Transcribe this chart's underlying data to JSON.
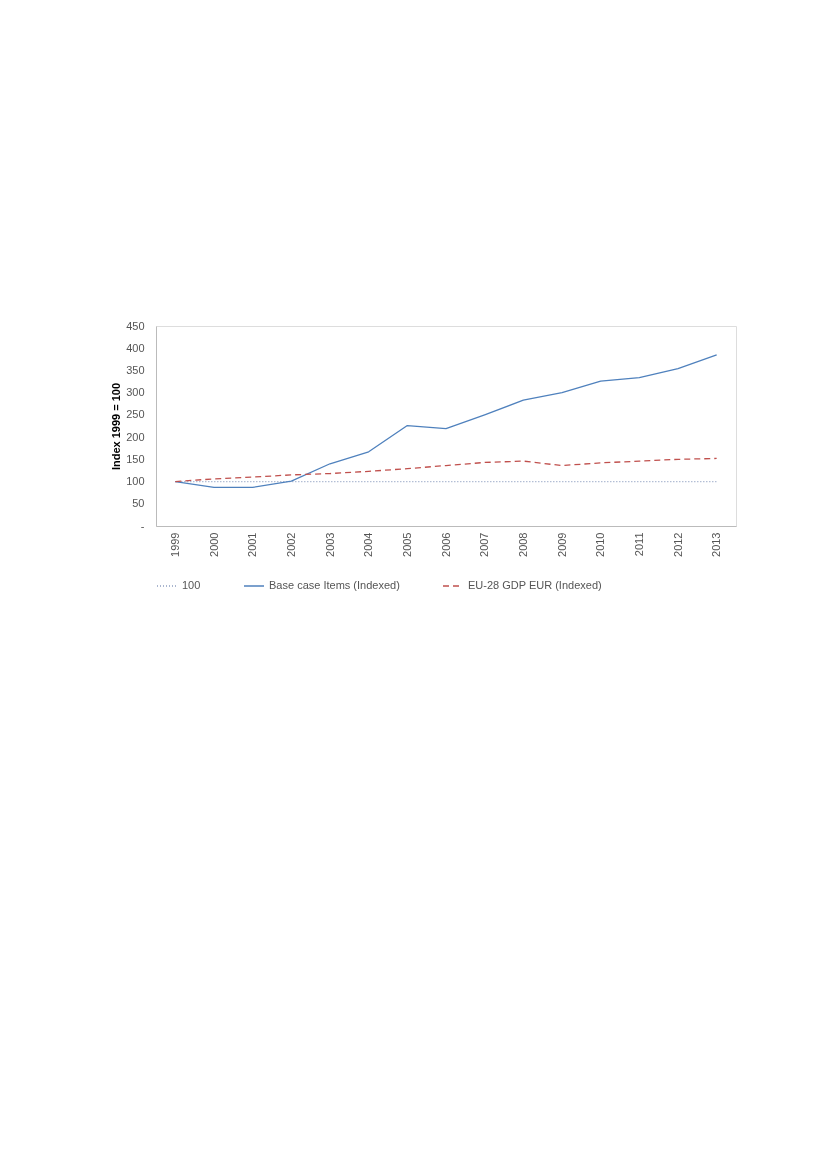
{
  "chart_data": {
    "type": "line",
    "ylabel": "Index 1999 = 100",
    "categories": [
      "1999",
      "2000",
      "2001",
      "2002",
      "2003",
      "2004",
      "2005",
      "2006",
      "2007",
      "2008",
      "2009",
      "2010",
      "2011",
      "2012",
      "2013"
    ],
    "series": [
      {
        "name": "100",
        "color": "#8e9fc0",
        "line_style": "dotted",
        "values": [
          100,
          100,
          100,
          100,
          100,
          100,
          100,
          100,
          100,
          100,
          100,
          100,
          100,
          100,
          100
        ]
      },
      {
        "name": "Base case Items (Indexed)",
        "color": "#4f81bd",
        "line_style": "solid",
        "values": [
          100,
          87,
          87,
          101,
          140,
          167,
          226,
          219,
          250,
          283,
          300,
          326,
          334,
          354,
          385
        ]
      },
      {
        "name": "EU-28 GDP EUR (Indexed)",
        "color": "#c0504d",
        "line_style": "dashed",
        "values": [
          100,
          106,
          110,
          115,
          118,
          123,
          129,
          136,
          143,
          146,
          136,
          142,
          146,
          150,
          152
        ]
      }
    ],
    "ylim": [
      0,
      450
    ],
    "yticks": [
      {
        "value": 0,
        "label": "-"
      },
      50,
      100,
      150,
      200,
      250,
      300,
      350,
      400,
      450
    ],
    "grid": false,
    "legend": "bottom",
    "marker": "none"
  }
}
